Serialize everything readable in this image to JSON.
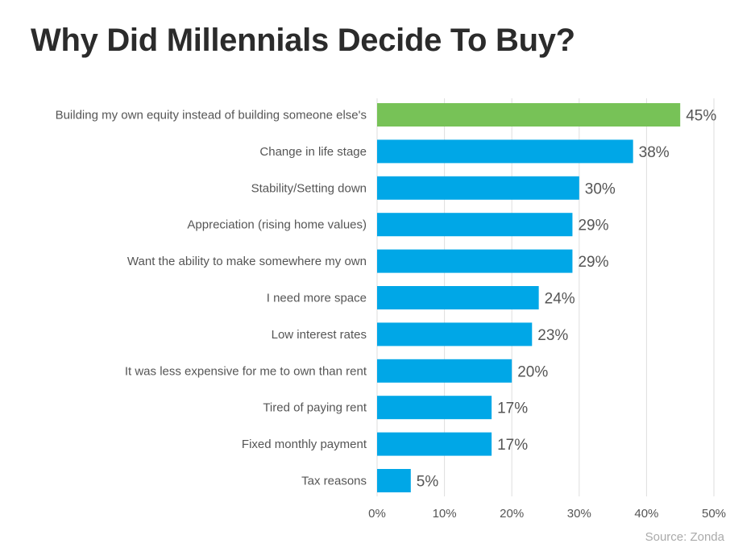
{
  "chart_data": {
    "type": "bar",
    "orientation": "horizontal",
    "title": "Why Did Millennials Decide To Buy?",
    "categories": [
      "Building my own equity instead of building someone else's",
      "Change in life stage",
      "Stability/Setting down",
      "Appreciation (rising home values)",
      "Want the ability to make somewhere my own",
      "I need more space",
      "Low interest rates",
      "It was less expensive for me to own than rent",
      "Tired of paying rent",
      "Fixed monthly payment",
      "Tax reasons"
    ],
    "values": [
      45,
      38,
      30,
      29,
      29,
      24,
      23,
      20,
      17,
      17,
      5
    ],
    "data_labels": [
      "45%",
      "38%",
      "30%",
      "29%",
      "29%",
      "24%",
      "23%",
      "20%",
      "17%",
      "17%",
      "5%"
    ],
    "xlim": [
      0,
      50
    ],
    "xticks": [
      0,
      10,
      20,
      30,
      40,
      50
    ],
    "xtick_labels": [
      "0%",
      "10%",
      "20%",
      "30%",
      "40%",
      "50%"
    ],
    "grid": "vertical",
    "colors": {
      "highlight": "#77c257",
      "bar": "#00a7e7"
    },
    "highlight_index": 0
  },
  "source": "Source: Zonda"
}
